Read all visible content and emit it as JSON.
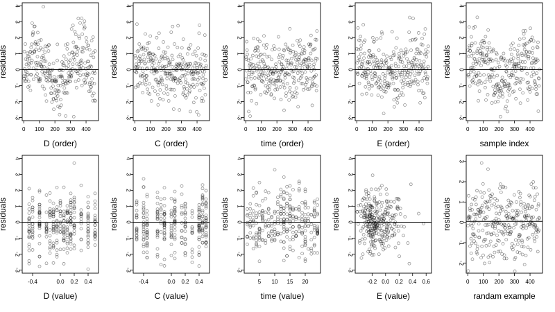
{
  "chart_data": [
    {
      "type": "scatter",
      "xlabel": "D (order)",
      "ylabel": "residuals",
      "xlim": [
        -10,
        480
      ],
      "ylim": [
        -3.2,
        4.2
      ],
      "xticks": [
        0,
        100,
        200,
        300,
        400
      ],
      "xticklabels": [
        "0",
        "100",
        "200",
        "300",
        "400"
      ],
      "yticks": [
        -3,
        -2,
        -1,
        0,
        1,
        2,
        3,
        4
      ],
      "yticklabels": [
        "-3",
        "-2",
        "-1",
        "0",
        "1",
        "2",
        "3",
        "4"
      ],
      "zero_line": 0,
      "series": [
        {
          "x": [],
          "y": []
        }
      ]
    },
    {
      "type": "scatter",
      "xlabel": "C (order)",
      "ylabel": "residuals",
      "xlim": [
        -10,
        480
      ],
      "ylim": [
        -3.2,
        4.2
      ],
      "xticks": [
        0,
        100,
        200,
        300,
        400
      ],
      "xticklabels": [
        "0",
        "100",
        "200",
        "300",
        "400"
      ],
      "yticks": [
        -3,
        -2,
        -1,
        0,
        1,
        2,
        3,
        4
      ],
      "yticklabels": [
        "-3",
        "-2",
        "-1",
        "0",
        "1",
        "2",
        "3",
        "4"
      ],
      "zero_line": 0,
      "series": [
        {
          "x": [],
          "y": []
        }
      ]
    },
    {
      "type": "scatter",
      "xlabel": "time (order)",
      "ylabel": "residuals",
      "xlim": [
        -10,
        480
      ],
      "ylim": [
        -3.2,
        4.2
      ],
      "xticks": [
        0,
        100,
        200,
        300,
        400
      ],
      "xticklabels": [
        "0",
        "100",
        "200",
        "300",
        "400"
      ],
      "yticks": [
        -3,
        -2,
        -1,
        0,
        1,
        2,
        3,
        4
      ],
      "yticklabels": [
        "-3",
        "-2",
        "-1",
        "0",
        "1",
        "2",
        "3",
        "4"
      ],
      "zero_line": 0,
      "series": [
        {
          "x": [],
          "y": []
        }
      ]
    },
    {
      "type": "scatter",
      "xlabel": "E (order)",
      "ylabel": "residuals",
      "xlim": [
        -10,
        480
      ],
      "ylim": [
        -3.2,
        4.2
      ],
      "xticks": [
        0,
        100,
        200,
        300,
        400
      ],
      "xticklabels": [
        "0",
        "100",
        "200",
        "300",
        "400"
      ],
      "yticks": [
        -3,
        -2,
        -1,
        0,
        1,
        2,
        3,
        4
      ],
      "yticklabels": [
        "-3",
        "-2",
        "-1",
        "0",
        "1",
        "2",
        "3",
        "4"
      ],
      "zero_line": 0,
      "series": [
        {
          "x": [],
          "y": []
        }
      ]
    },
    {
      "type": "scatter",
      "xlabel": "sample index",
      "ylabel": "residuals",
      "xlim": [
        -10,
        480
      ],
      "ylim": [
        -3.2,
        4.2
      ],
      "xticks": [
        0,
        100,
        200,
        300,
        400
      ],
      "xticklabels": [
        "0",
        "100",
        "200",
        "300",
        "400"
      ],
      "yticks": [
        -3,
        -2,
        -1,
        0,
        1,
        2,
        3,
        4
      ],
      "yticklabels": [
        "-3",
        "-2",
        "-1",
        "0",
        "1",
        "2",
        "3",
        "4"
      ],
      "zero_line": 0,
      "series": [
        {
          "x": [],
          "y": []
        }
      ]
    },
    {
      "type": "scatter",
      "xlabel": "D (value)",
      "ylabel": "residuals",
      "xlim": [
        -0.55,
        0.55
      ],
      "ylim": [
        -3.2,
        4.2
      ],
      "xticks": [
        -0.4,
        0,
        0.2,
        0.4
      ],
      "xticklabels": [
        "-0.4",
        "0.0",
        "0.2",
        "0.4"
      ],
      "yticks": [
        -3,
        -2,
        -1,
        0,
        1,
        2,
        3,
        4
      ],
      "yticklabels": [
        "-3",
        "-2",
        "-1",
        "0",
        "1",
        "2",
        "3",
        "4"
      ],
      "zero_line": 0,
      "series": [
        {
          "x": [],
          "y": []
        }
      ]
    },
    {
      "type": "scatter",
      "xlabel": "C (value)",
      "ylabel": "residuals",
      "xlim": [
        -0.55,
        0.55
      ],
      "ylim": [
        -3.2,
        4.2
      ],
      "xticks": [
        -0.4,
        0,
        0.2,
        0.4
      ],
      "xticklabels": [
        "-0.4",
        "0.0",
        "0.2",
        "0.4"
      ],
      "yticks": [
        -3,
        -2,
        -1,
        0,
        1,
        2,
        3,
        4
      ],
      "yticklabels": [
        "-3",
        "-2",
        "-1",
        "0",
        "1",
        "2",
        "3",
        "4"
      ],
      "zero_line": 0,
      "series": [
        {
          "x": [],
          "y": []
        }
      ]
    },
    {
      "type": "scatter",
      "xlabel": "time (value)",
      "ylabel": "residuals",
      "xlim": [
        0,
        25
      ],
      "ylim": [
        -3.2,
        4.2
      ],
      "xticks": [
        5,
        10,
        15,
        20
      ],
      "xticklabels": [
        "5",
        "10",
        "15",
        "20"
      ],
      "yticks": [
        -3,
        -2,
        -1,
        0,
        1,
        2,
        3,
        4
      ],
      "yticklabels": [
        "-3",
        "-2",
        "-1",
        "0",
        "1",
        "2",
        "3",
        "4"
      ],
      "zero_line": 0,
      "series": [
        {
          "x": [],
          "y": []
        }
      ]
    },
    {
      "type": "scatter",
      "xlabel": "E (value)",
      "ylabel": "residuals",
      "xlim": [
        -0.45,
        0.68
      ],
      "ylim": [
        -3.2,
        4.2
      ],
      "xticks": [
        -0.2,
        0,
        0.2,
        0.4,
        0.6
      ],
      "xticklabels": [
        "-0.2",
        "0.0",
        "0.2",
        "0.4",
        "0.6"
      ],
      "yticks": [
        -3,
        -2,
        -1,
        0,
        1,
        2,
        3,
        4
      ],
      "yticklabels": [
        "-3",
        "-2",
        "-1",
        "0",
        "1",
        "2",
        "3",
        "4"
      ],
      "zero_line": 0,
      "series": [
        {
          "x": [],
          "y": []
        }
      ]
    },
    {
      "type": "scatter",
      "xlabel": "randam example",
      "ylabel": "residuals",
      "xlim": [
        -10,
        480
      ],
      "ylim": [
        -2.5,
        3.3
      ],
      "xticks": [
        0,
        100,
        200,
        300,
        400
      ],
      "xticklabels": [
        "0",
        "100",
        "200",
        "300",
        "400"
      ],
      "yticks": [
        -2,
        -1,
        0,
        1,
        2,
        3
      ],
      "yticklabels": [
        "-2",
        "-1",
        "0",
        "1",
        "2",
        "3"
      ],
      "zero_line": 0.05,
      "series": [
        {
          "x": [],
          "y": []
        }
      ]
    }
  ]
}
